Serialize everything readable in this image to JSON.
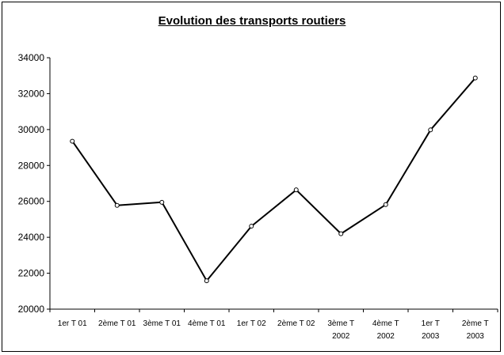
{
  "chart_data": {
    "type": "line",
    "title": "Evolution des transports routiers",
    "xlabel": "",
    "ylabel": "",
    "ylim": [
      20000,
      34000
    ],
    "yticks": [
      "20000",
      "22000",
      "24000",
      "26000",
      "28000",
      "30000",
      "32000",
      "34000"
    ],
    "categories": [
      [
        "1er T 01"
      ],
      [
        "2ème T 01"
      ],
      [
        "3ème T 01"
      ],
      [
        "4ème T 01"
      ],
      [
        "1er T 02"
      ],
      [
        "2ème T 02"
      ],
      [
        "3ème T",
        "2002"
      ],
      [
        "4ème T",
        "2002"
      ],
      [
        "1er T",
        "2003"
      ],
      [
        "2ème T",
        "2003"
      ]
    ],
    "series": [
      {
        "values": [
          29350,
          25780,
          25950,
          21580,
          24620,
          26640,
          24200,
          25820,
          29980,
          32870
        ]
      }
    ],
    "grid": false,
    "legend": "none",
    "line_color": "#000000",
    "marker_fill": "#ffffff"
  }
}
